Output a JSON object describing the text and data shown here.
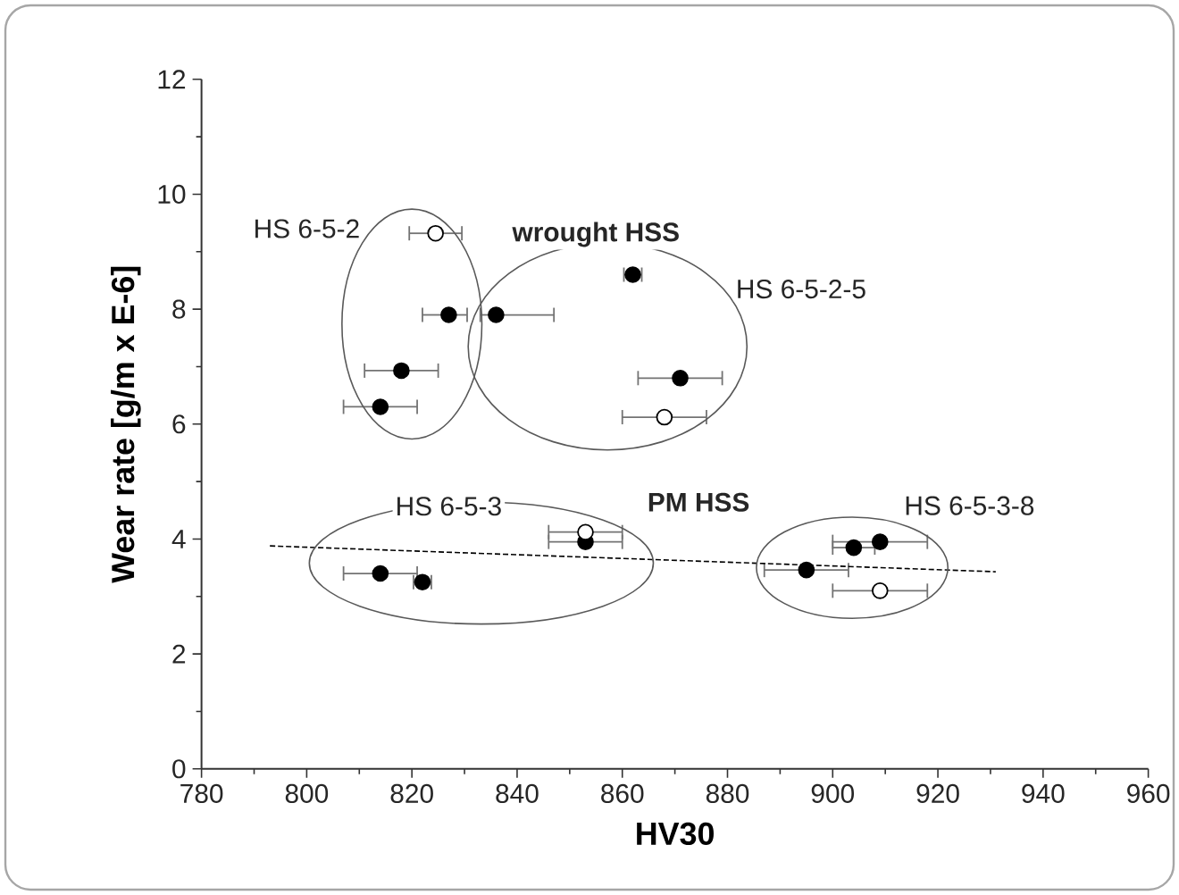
{
  "chart_data": {
    "type": "scatter",
    "xlabel": "HV30",
    "ylabel": "Wear rate  [g/m x E-6]",
    "xlim": [
      780,
      960
    ],
    "xticks": [
      780,
      800,
      820,
      840,
      860,
      880,
      900,
      920,
      940,
      960
    ],
    "ylim": [
      0,
      12
    ],
    "yticks": [
      0,
      2,
      4,
      6,
      8,
      10,
      12
    ],
    "marker": "circle",
    "series": [
      {
        "color": "#000000",
        "x": [
          862,
          827,
          836,
          818,
          871,
          814,
          853,
          814,
          822,
          895,
          904,
          909
        ],
        "values": [
          8.6,
          7.9,
          7.9,
          6.93,
          6.8,
          6.3,
          3.95,
          3.4,
          3.25,
          3.46,
          3.85,
          3.95
        ],
        "xerrors": [
          1.7,
          [
            822,
            830.5
          ],
          [
            833,
            847
          ],
          7,
          8,
          7,
          7,
          7,
          1.7,
          8,
          4,
          9
        ]
      },
      {
        "color": "#ffffff",
        "x": [
          824.5,
          868,
          853,
          909
        ],
        "values": [
          9.32,
          6.12,
          4.12,
          3.1
        ],
        "xerrors": [
          5,
          8,
          7,
          9
        ]
      },
      {
        "type": "line",
        "color": "#000000",
        "line_style": "dashed",
        "marker": "none",
        "x": [
          793,
          931
        ],
        "values": [
          3.88,
          3.43
        ]
      }
    ],
    "annotations": [
      "HS 6-5-2",
      "wrought HSS",
      "HS 6-5-2-5",
      "HS 6-5-3",
      "PM HSS",
      "HS 6-5-3-8"
    ]
  }
}
